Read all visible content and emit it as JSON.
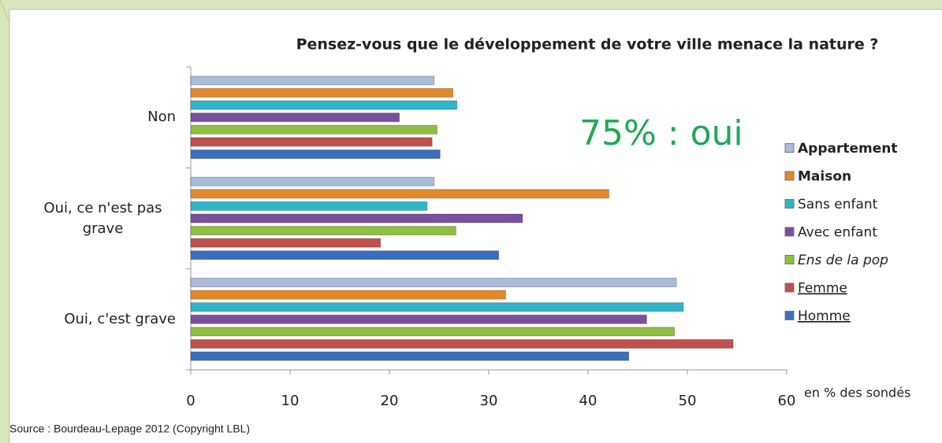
{
  "chart_data": {
    "type": "bar",
    "orientation": "horizontal",
    "title": "Pensez-vous que le développement de votre ville menace la nature ?",
    "annotation": "75% : oui",
    "x_axis_label": "en  % des sondés",
    "source": "Source : Bourdeau-Lepage 2012 (Copyright LBL)",
    "categories": [
      "Non",
      "Oui, ce n'est pas grave",
      "Oui, c'est grave"
    ],
    "series": [
      {
        "name": "Appartement",
        "color": "#a9bcdb",
        "values": [
          24.5,
          24.5,
          48.9
        ]
      },
      {
        "name": "Maison",
        "color": "#e3892b",
        "values": [
          26.4,
          42.1,
          31.7
        ]
      },
      {
        "name": "Sans enfant",
        "color": "#2fb5c9",
        "values": [
          26.8,
          23.8,
          49.6
        ]
      },
      {
        "name": "Avec enfant",
        "color": "#7a4f9e",
        "values": [
          21.0,
          33.4,
          45.9
        ]
      },
      {
        "name": "Ens de la pop",
        "color": "#8fbf3f",
        "values": [
          24.8,
          26.7,
          48.7
        ]
      },
      {
        "name": "Femme",
        "color": "#c0504d",
        "values": [
          24.3,
          19.1,
          54.6
        ]
      },
      {
        "name": "Homme",
        "color": "#3a6fc0",
        "values": [
          25.1,
          31.0,
          44.1
        ]
      }
    ],
    "xlim": [
      0,
      60
    ],
    "xticks": [
      0,
      10,
      20,
      30,
      40,
      50,
      60
    ],
    "grid": false,
    "legend": "right"
  }
}
